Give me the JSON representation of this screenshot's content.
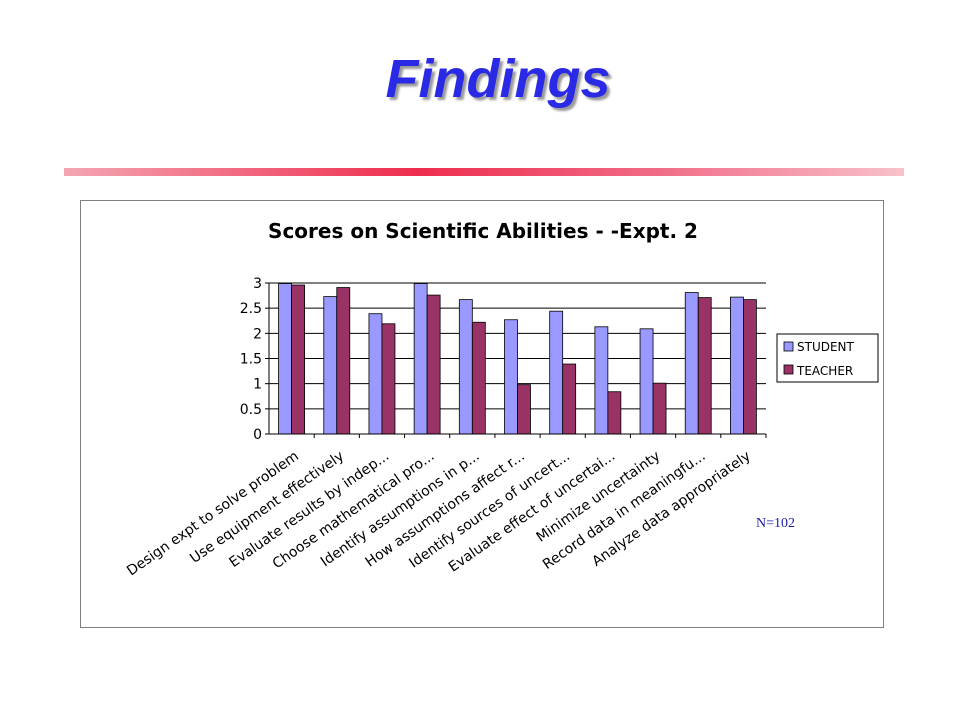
{
  "slide": {
    "title": "Findings",
    "note": "N=102"
  },
  "chart_data": {
    "type": "bar",
    "title": "Scores on Scientific Abilities - -Expt. 2",
    "xlabel": "",
    "ylabel": "",
    "ylim": [
      0,
      3
    ],
    "yticks": [
      0,
      0.5,
      1,
      1.5,
      2,
      2.5,
      3
    ],
    "grid": true,
    "legend_position": "right",
    "categories": [
      "Design expt to solve problem",
      "Use equipment effectively",
      "Evaluate results by indep...",
      "Choose mathematical pro...",
      "Identify assumptions in p...",
      "How assumptions affect r...",
      "Identify sources of uncert...",
      "Evaluate effect of uncertai...",
      "Minimize uncertainty",
      "Record data in meaningfu...",
      "Analyze data appropriately"
    ],
    "series": [
      {
        "name": "STUDENT",
        "color": "#9999ff",
        "values": [
          2.99,
          2.73,
          2.39,
          2.99,
          2.67,
          2.27,
          2.44,
          2.13,
          2.09,
          2.81,
          2.72
        ]
      },
      {
        "name": "TEACHER",
        "color": "#993366",
        "values": [
          2.96,
          2.91,
          2.19,
          2.76,
          2.22,
          0.98,
          1.39,
          0.84,
          1.01,
          2.71,
          2.67
        ]
      }
    ]
  }
}
